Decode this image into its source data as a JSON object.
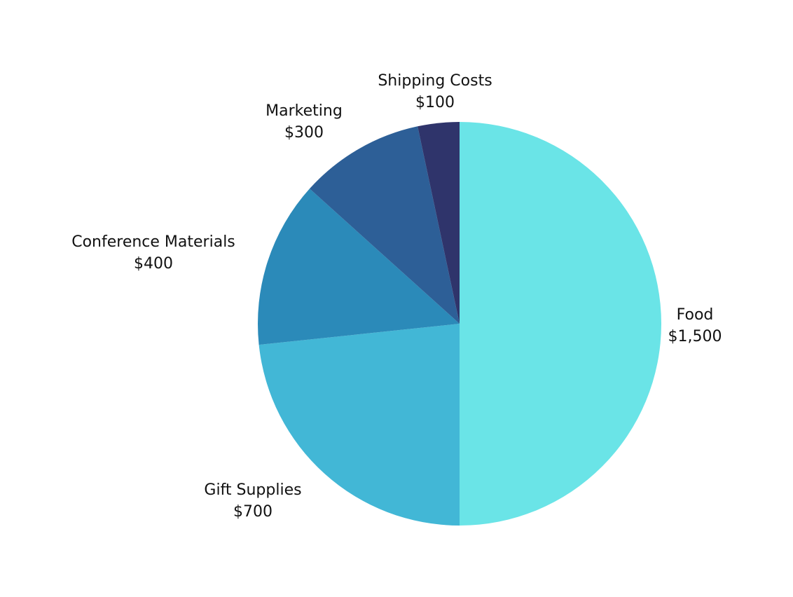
{
  "chart_data": {
    "type": "pie",
    "slices": [
      {
        "label": "Food",
        "value_label": "$1,500",
        "value": 1500,
        "color": "#6ae4e7"
      },
      {
        "label": "Gift Supplies",
        "value_label": "$700",
        "value": 700,
        "color": "#42b7d6"
      },
      {
        "label": "Conference Materials",
        "value_label": "$400",
        "value": 400,
        "color": "#2b8ab9"
      },
      {
        "label": "Marketing",
        "value_label": "$300",
        "value": 300,
        "color": "#2d5f97"
      },
      {
        "label": "Shipping Costs",
        "value_label": "$100",
        "value": 100,
        "color": "#2f346b"
      }
    ]
  }
}
